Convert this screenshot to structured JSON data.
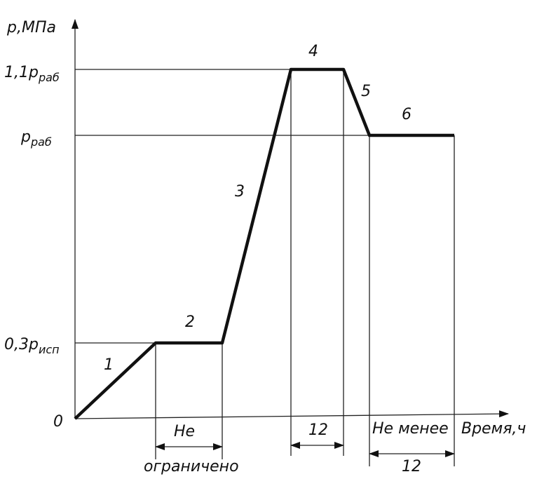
{
  "y_axis_label": "p,МПа",
  "y_levels": [
    {
      "main": "1,1p",
      "sub": "раб"
    },
    {
      "main": "p",
      "sub": "раб"
    },
    {
      "main": "0,3p",
      "sub": "исп"
    },
    {
      "main": "0"
    }
  ],
  "x_axis_label": "Время,ч",
  "segments": [
    "1",
    "2",
    "3",
    "4",
    "5",
    "6"
  ],
  "intervals": [
    {
      "label": "Не",
      "sublabel": "ограничено"
    },
    {
      "label": "12"
    },
    {
      "label": "Не менее",
      "sublabel": "12"
    }
  ]
}
